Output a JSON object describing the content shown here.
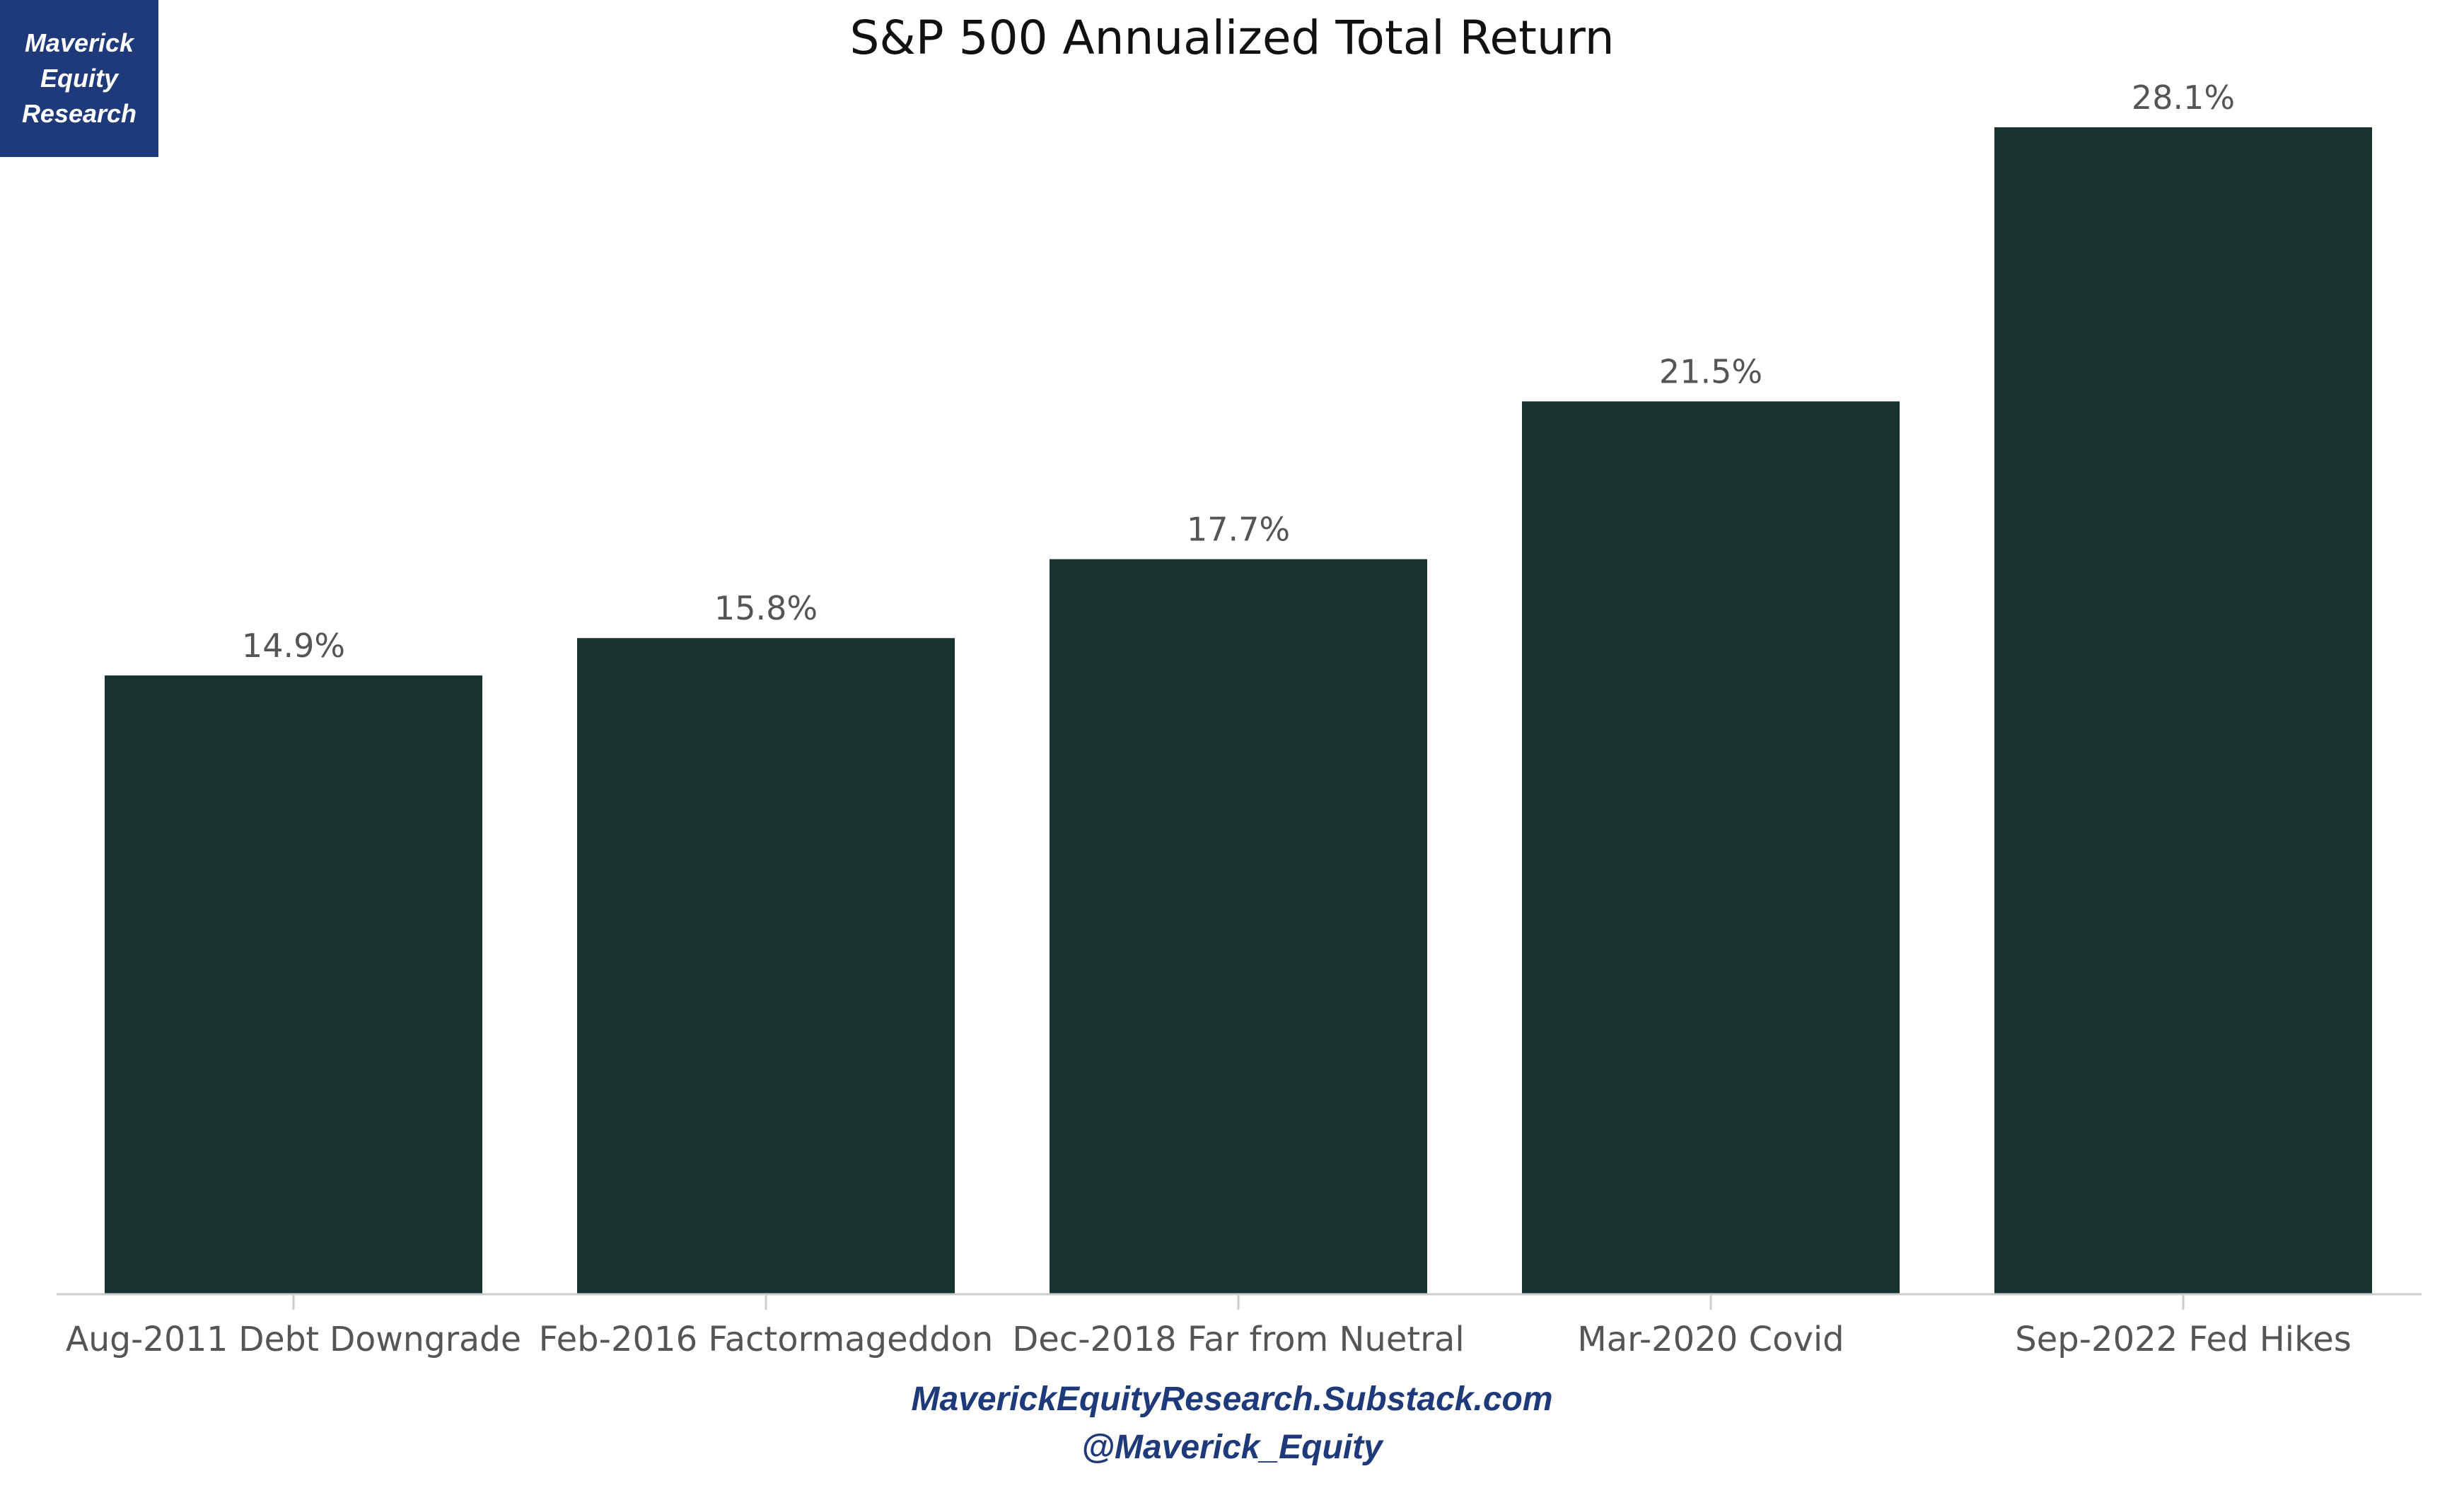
{
  "logo": {
    "lines": [
      "Maverick",
      "Equity",
      "Research"
    ],
    "background_color": "#1f3a7a"
  },
  "footer": {
    "website": "MaverickEquityResearch.Substack.com",
    "handle": "@Maverick_Equity",
    "color": "#1f3a7a"
  },
  "chart_data": {
    "type": "bar",
    "title": "S&P 500 Annualized Total Return",
    "xlabel": "",
    "ylabel": "",
    "categories": [
      "Aug-2011 Debt Downgrade",
      "Feb-2016 Factormageddon",
      "Dec-2018 Far from Nuetral",
      "Mar-2020 Covid",
      "Sep-2022 Fed Hikes"
    ],
    "values": [
      14.9,
      15.8,
      17.7,
      21.5,
      28.1
    ],
    "value_labels": [
      "14.9%",
      "15.8%",
      "17.7%",
      "21.5%",
      "28.1%"
    ],
    "value_unit": "%",
    "ylim": [
      0,
      28.1
    ],
    "y_axis_visible": false,
    "grid": false,
    "legend": "none",
    "bar_color": "#18332f"
  }
}
